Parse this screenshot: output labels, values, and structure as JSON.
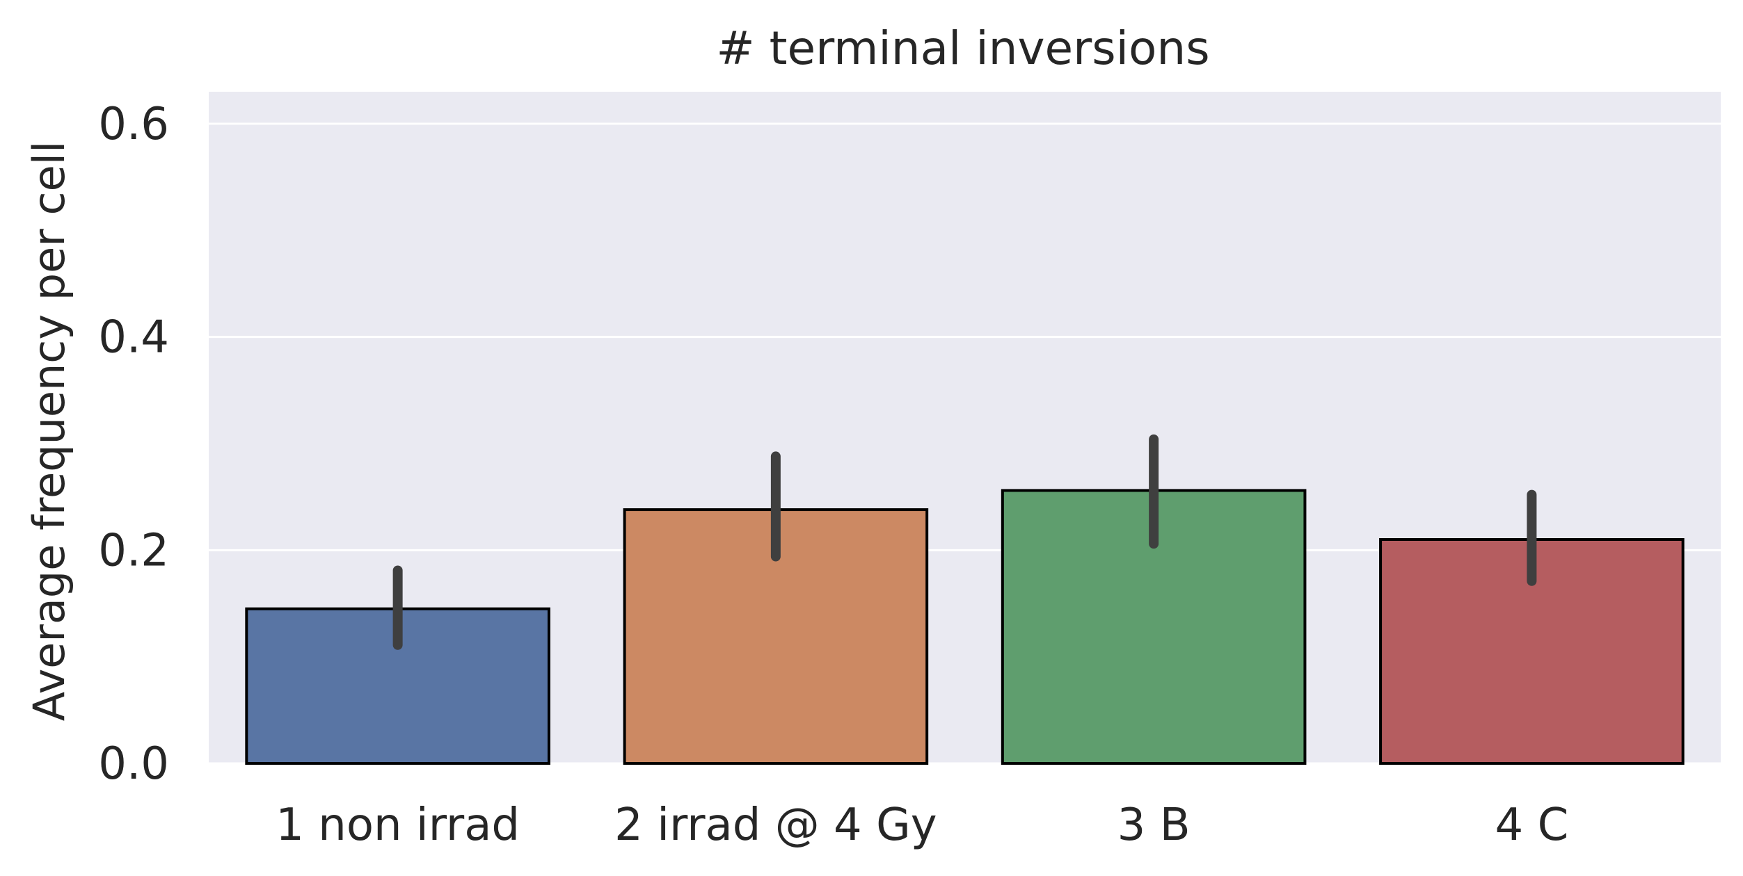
{
  "chart_data": {
    "type": "bar",
    "title": "# terminal inversions",
    "xlabel": "",
    "ylabel": "Average frequency per cell",
    "categories": [
      "1 non irrad",
      "2 irrad @ 4 Gy",
      "3 B",
      "4 C"
    ],
    "values": [
      0.145,
      0.238,
      0.256,
      0.21
    ],
    "error_low": [
      0.111,
      0.194,
      0.206,
      0.171
    ],
    "error_high": [
      0.181,
      0.288,
      0.304,
      0.252
    ],
    "yticks": [
      0.0,
      0.2,
      0.4,
      0.6
    ],
    "ytick_labels": [
      "0.0",
      "0.2",
      "0.4",
      "0.6"
    ],
    "ylim": [
      0,
      0.63
    ],
    "grid": true,
    "colors": {
      "bars": [
        "#5975a4",
        "#cc8963",
        "#5f9e6e",
        "#b55d60"
      ],
      "plot_background": "#eaeaf2",
      "grid": "#ffffff",
      "bar_edge": "#000000",
      "error_bar": "#3f3f3f"
    }
  }
}
